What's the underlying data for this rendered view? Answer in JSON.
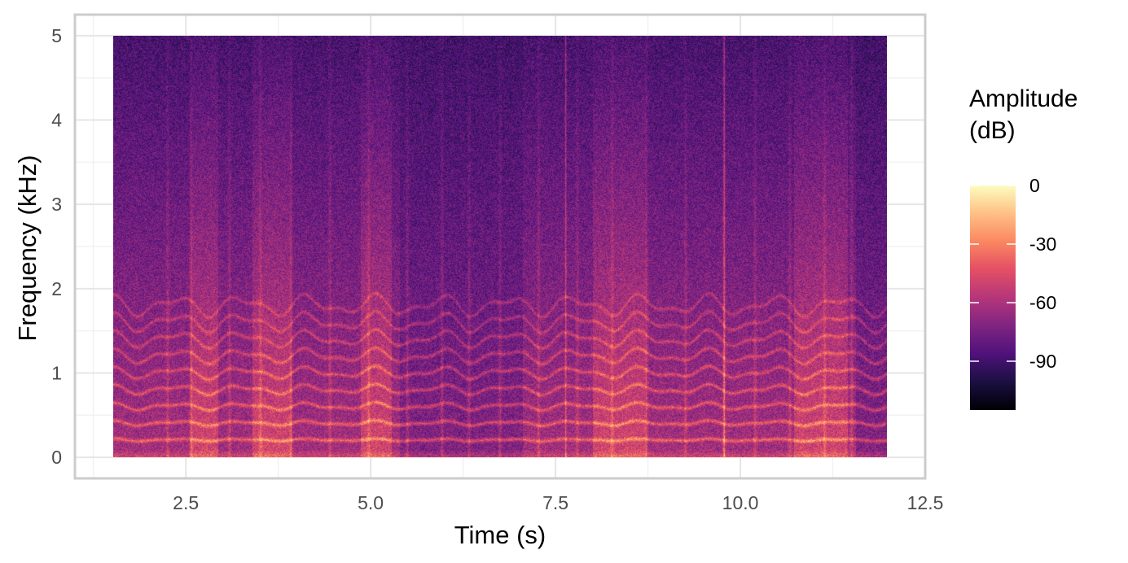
{
  "chart_data": {
    "type": "heatmap",
    "subtype": "spectrogram",
    "title": "",
    "xlabel": "Time (s)",
    "ylabel": "Frequency (kHz)",
    "xlim": [
      1.0,
      12.5
    ],
    "ylim": [
      -0.25,
      5.25
    ],
    "data_x_range": [
      2.0,
      12.0
    ],
    "data_y_range": [
      0,
      5
    ],
    "x_ticks": [
      2.5,
      5.0,
      7.5,
      10.0,
      12.5
    ],
    "x_tick_labels": [
      "2.5",
      "5.0",
      "7.5",
      "10.0",
      "12.5"
    ],
    "y_ticks": [
      0,
      1,
      2,
      3,
      4,
      5
    ],
    "y_tick_labels": [
      "0",
      "1",
      "2",
      "3",
      "4",
      "5"
    ],
    "grid": true,
    "legend": {
      "title_lines": [
        "Amplitude",
        "(dB)"
      ],
      "position": "right",
      "range": [
        -115,
        0
      ],
      "ticks": [
        0,
        -30,
        -60,
        -90
      ],
      "tick_labels": [
        "0",
        "-30",
        "-60",
        "-90"
      ],
      "colormap": "magma"
    },
    "harmonics_khz": [
      0.2,
      0.4,
      0.6,
      0.8,
      1.0,
      1.2,
      1.4,
      1.6,
      1.8
    ],
    "note_onsets_s": [
      2.7,
      3.0,
      3.5,
      3.9,
      4.3,
      4.8,
      5.3,
      5.8,
      6.25,
      6.6,
      7.0,
      7.5,
      8.0,
      8.45,
      8.9,
      9.4,
      9.9,
      10.3,
      10.75,
      11.2,
      11.55
    ],
    "transient_lines_s": [
      7.85,
      9.9
    ],
    "loud_segments_s": [
      [
        3.0,
        3.35
      ],
      [
        3.8,
        4.3
      ],
      [
        5.2,
        5.6
      ],
      [
        8.2,
        8.9
      ],
      [
        10.8,
        11.5
      ]
    ],
    "quiet_segments_s": [
      [
        5.7,
        7.3
      ],
      [
        11.6,
        12.0
      ]
    ]
  }
}
